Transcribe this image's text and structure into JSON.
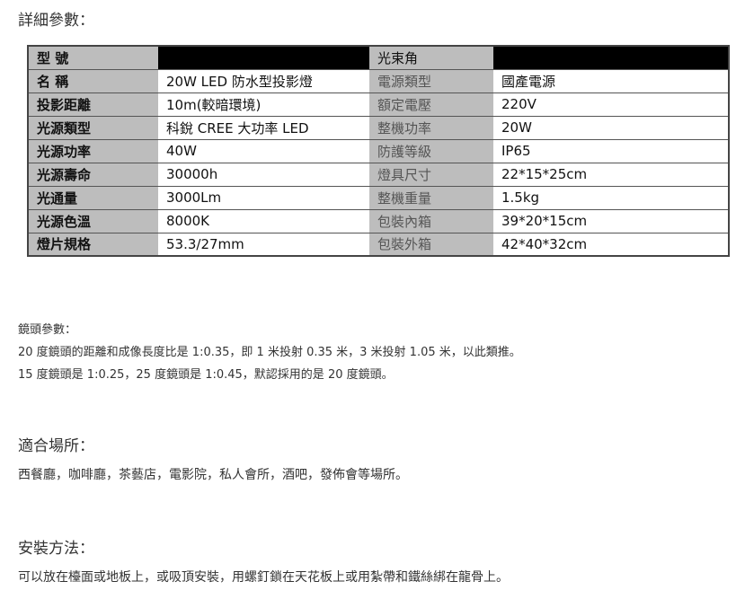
{
  "title": "詳細參數：",
  "table": {
    "header": {
      "label1": "型 號",
      "value1": "",
      "label2": "光束角",
      "value2": ""
    },
    "rows": [
      [
        "名 稱",
        "20W LED 防水型投影燈",
        "電源類型",
        "國產電源"
      ],
      [
        "投影距離",
        "10m(較暗環境)",
        "額定電壓",
        "220V"
      ],
      [
        "光源類型",
        "科銳 CREE 大功率 LED",
        "整機功率",
        "20W"
      ],
      [
        "光源功率",
        "40W",
        "防護等級",
        "IP65"
      ],
      [
        "光源壽命",
        "30000h",
        "燈具尺寸",
        "22*15*25cm"
      ],
      [
        "光通量",
        "3000Lm",
        "整機重量",
        "1.5kg"
      ],
      [
        "光源色溫",
        "8000K",
        "包裝內箱",
        "39*20*15cm"
      ],
      [
        "燈片規格",
        "53.3/27mm",
        "包裝外箱",
        "42*40*32cm"
      ]
    ]
  },
  "lens": {
    "title": "鏡頭參數：",
    "line1": "20 度鏡頭的距離和成像長度比是 1:0.35，即 1 米投射 0.35 米，3 米投射 1.05 米，以此類推。",
    "line2": "15 度鏡頭是 1:0.25，25 度鏡頭是 1:0.45，默認採用的是 20 度鏡頭。"
  },
  "venues": {
    "title": "適合場所：",
    "text": "西餐廳，咖啡廳，茶藝店，電影院，私人會所，酒吧，發佈會等場所。"
  },
  "install": {
    "title": "安裝方法：",
    "text": "可以放在檯面或地板上，或吸頂安裝，用螺釘鎖在天花板上或用紮帶和鐵絲綁在龍骨上。"
  }
}
